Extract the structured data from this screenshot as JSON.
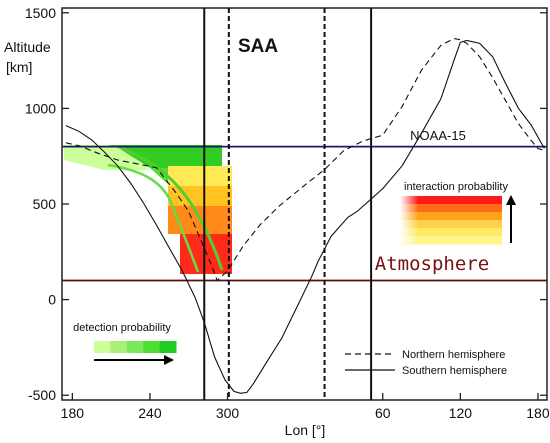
{
  "chart_data": {
    "type": "line",
    "title": "",
    "xlabel": "Lon [°]",
    "ylabel": "Altitude\n[km]",
    "x_ticks": [
      "180",
      "240",
      "300",
      "60",
      "120",
      "180"
    ],
    "x_tick_values": [
      180,
      240,
      300,
      420,
      480,
      540
    ],
    "xlim": [
      172,
      547
    ],
    "ylim": [
      -525,
      1525
    ],
    "y_ticks": [
      -500,
      0,
      500,
      1000,
      1500
    ],
    "grid": false,
    "legend_position": "bottom-right",
    "legend": [
      {
        "label": "Northern hemisphere",
        "style": "dashed"
      },
      {
        "label": "Southern hemisphere",
        "style": "solid"
      }
    ],
    "series": [
      {
        "name": "Northern hemisphere",
        "style": "dashed",
        "x": [
          175,
          185,
          200,
          215,
          230,
          245,
          260,
          270,
          280,
          287,
          292,
          300,
          312,
          325,
          340,
          360,
          375,
          390,
          405,
          420,
          435,
          450,
          465,
          475,
          480,
          485,
          495,
          505,
          515,
          525,
          535,
          540,
          545
        ],
        "y": [
          820,
          805,
          765,
          730,
          710,
          690,
          560,
          460,
          300,
          190,
          100,
          150,
          280,
          390,
          490,
          600,
          680,
          780,
          830,
          860,
          1010,
          1200,
          1330,
          1365,
          1360,
          1340,
          1270,
          1160,
          1040,
          920,
          830,
          790,
          780
        ]
      },
      {
        "name": "Southern hemisphere",
        "style": "solid",
        "x": [
          175,
          185,
          195,
          205,
          215,
          225,
          235,
          245,
          255,
          265,
          275,
          282,
          290,
          298,
          305,
          310,
          315,
          320,
          330,
          342,
          355,
          365,
          370,
          380,
          393,
          400,
          410,
          420,
          435,
          450,
          465,
          475,
          480,
          485,
          495,
          505,
          515,
          525,
          535,
          545
        ],
        "y": [
          910,
          880,
          835,
          770,
          700,
          610,
          505,
          390,
          270,
          150,
          10,
          -120,
          -300,
          -420,
          -480,
          -490,
          -485,
          -440,
          -330,
          -200,
          -20,
          120,
          200,
          330,
          430,
          460,
          520,
          580,
          700,
          870,
          1050,
          1250,
          1345,
          1355,
          1340,
          1270,
          1130,
          1000,
          910,
          790
        ]
      }
    ],
    "reference_lines": [
      {
        "label": "NOAA-15",
        "altitude": 800,
        "color": "#1a1a6e"
      },
      {
        "label": "Atmosphere",
        "altitude": 100,
        "color": "#5a0f0f"
      }
    ],
    "vertical_lines": [
      {
        "x": 282,
        "style": "solid"
      },
      {
        "x": 301,
        "style": "dashed"
      },
      {
        "x": 375,
        "style": "dashed"
      },
      {
        "x": 411,
        "style": "solid"
      }
    ],
    "annotations": {
      "region_label": "SAA",
      "interaction_label": "interaction probability",
      "detection_label": "detection probability"
    },
    "colors": {
      "interaction_scale": [
        "#ff1a1a",
        "#ff6a1a",
        "#ffa31a",
        "#ffd24d",
        "#ffea66",
        "#fff58c"
      ],
      "detection_scale": [
        "#ccff99",
        "#a8f07a",
        "#7be85a",
        "#4ddd33",
        "#22cc22"
      ],
      "noaa_line": "#1a1a6e",
      "atmosphere_line": "#5a0f0f",
      "atmosphere_text": "#7a1010",
      "curve_overlay": "#55cc33"
    }
  }
}
